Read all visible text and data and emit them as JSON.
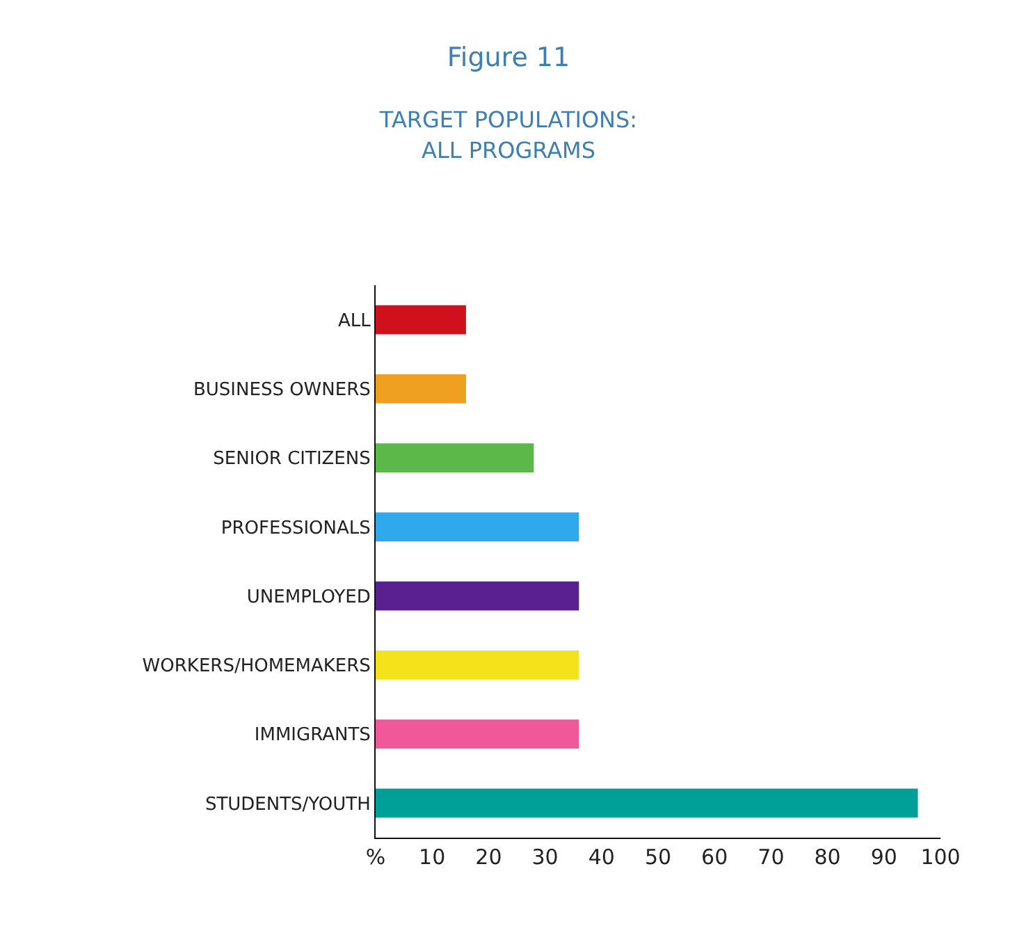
{
  "chart_data": {
    "type": "bar",
    "orientation": "horizontal",
    "title": "Figure 11",
    "subtitle": "TARGET POPULATIONS:\nALL PROGRAMS",
    "categories": [
      "ALL",
      "BUSINESS OWNERS",
      "SENIOR CITIZENS",
      "PROFESSIONALS",
      "UNEMPLOYED",
      "WORKERS/HOMEMAKERS",
      "IMMIGRANTS",
      "STUDENTS/YOUTH"
    ],
    "values": [
      16,
      16,
      28,
      36,
      36,
      36,
      36,
      96
    ],
    "colors": [
      "#d0101c",
      "#f0a020",
      "#5cb848",
      "#30a8ec",
      "#5a2090",
      "#f4e21a",
      "#f0589a",
      "#00a098"
    ],
    "xlim": [
      0,
      100
    ],
    "xticks": [
      {
        "value": 0,
        "label": "%"
      },
      10,
      20,
      30,
      40,
      50,
      60,
      70,
      80,
      90,
      100
    ],
    "legend": false
  }
}
